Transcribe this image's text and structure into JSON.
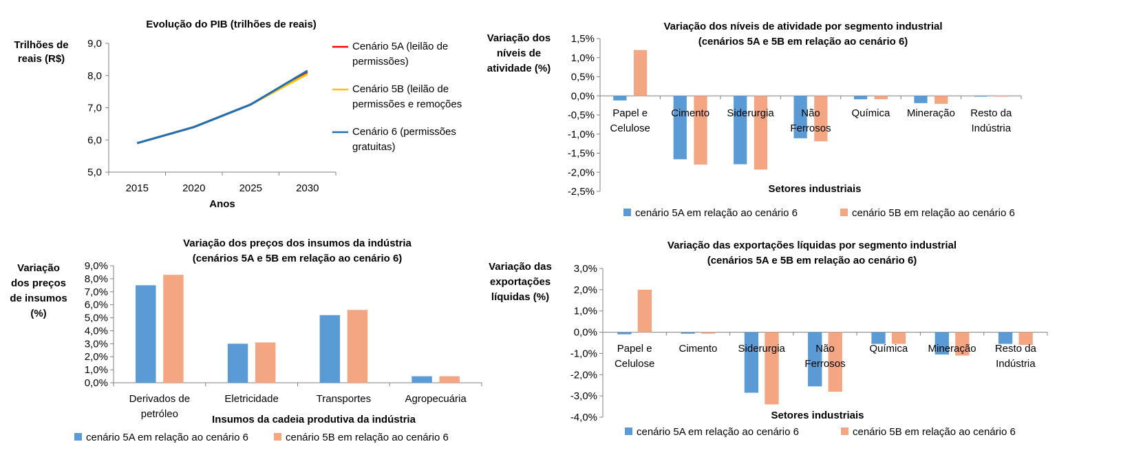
{
  "colors": {
    "series_5a_line": "#ff0000",
    "series_5b_line": "#ffc000",
    "series_6_line": "#1f6fb5",
    "series_5a_bar": "#5b9bd5",
    "series_5b_bar": "#f4a582",
    "axis": "#7f7f7f"
  },
  "chart_data": [
    {
      "id": "pib",
      "type": "line",
      "title": "Evolução do PIB (trilhões de reais)",
      "subtitle": "",
      "xlabel": "Anos",
      "ylabel": [
        "Trilhões de",
        "reais (R$)"
      ],
      "x": [
        "2015",
        "2020",
        "2025",
        "2030"
      ],
      "ylim": [
        5.0,
        9.0
      ],
      "yticks": [
        "5,0",
        "6,0",
        "7,0",
        "8,0",
        "9,0"
      ],
      "grid": false,
      "legend_position": "right",
      "series": [
        {
          "name": "Cenário 5A (leilão de permissões)",
          "legend_lines": [
            "Cenário 5A (leilão de",
            "permissões)"
          ],
          "color": "#ff0000",
          "values": [
            5.9,
            6.4,
            7.1,
            8.1
          ]
        },
        {
          "name": "Cenário 5B (leilão de permissões e remoções",
          "legend_lines": [
            "Cenário 5B (leilão de",
            "permissões e remoções"
          ],
          "color": "#ffc000",
          "values": [
            5.9,
            6.4,
            7.1,
            8.05
          ]
        },
        {
          "name": "Cenário 6 (permissões gratuitas)",
          "legend_lines": [
            "Cenário 6 (permissões",
            "gratuitas)"
          ],
          "color": "#1f6fb5",
          "values": [
            5.9,
            6.4,
            7.1,
            8.15
          ]
        }
      ]
    },
    {
      "id": "atividade",
      "type": "bar",
      "title": [
        "Variação dos níveis de atividade por segmento industrial",
        "(cenários 5A e 5B em relação ao cenário 6)"
      ],
      "xlabel": "Setores industriais",
      "ylabel": [
        "Variação dos",
        "níveis de",
        "atividade (%)"
      ],
      "categories": [
        [
          "Papel e",
          "Celulose"
        ],
        [
          "Cimento"
        ],
        [
          "Siderurgia"
        ],
        [
          "Não",
          "Ferrosos"
        ],
        [
          "Química"
        ],
        [
          "Mineração"
        ],
        [
          "Resto da",
          "Indústria"
        ]
      ],
      "ylim": [
        -2.5,
        1.5
      ],
      "yticks": [
        "-2,5%",
        "-2,0%",
        "-1,5%",
        "-1,0%",
        "-0,5%",
        "0,0%",
        "0,5%",
        "1,0%",
        "1,5%"
      ],
      "grid": false,
      "legend_position": "bottom",
      "series": [
        {
          "name": "cenário 5A em relação ao cenário 6",
          "color": "#5b9bd5",
          "values": [
            -0.12,
            -1.66,
            -1.79,
            -1.11,
            -0.09,
            -0.19,
            -0.02
          ]
        },
        {
          "name": "cenário 5B em relação ao cenário 6",
          "color": "#f4a582",
          "values": [
            1.2,
            -1.8,
            -1.93,
            -1.19,
            -0.09,
            -0.21,
            -0.02
          ]
        }
      ]
    },
    {
      "id": "precos",
      "type": "bar",
      "title": [
        "Variação dos preços dos insumos da indústria",
        "(cenários 5A e 5B em relação ao cenário 6)"
      ],
      "xlabel": "Insumos da cadeia produtiva da indústria",
      "ylabel": [
        "Variação",
        "dos preços",
        "de insumos",
        "(%)"
      ],
      "categories": [
        [
          "Derivados de",
          "petróleo"
        ],
        [
          "Eletricidade"
        ],
        [
          "Transportes"
        ],
        [
          "Agropecuária"
        ]
      ],
      "ylim": [
        0,
        9
      ],
      "yticks": [
        "0,0%",
        "1,0%",
        "2,0%",
        "3,0%",
        "4,0%",
        "5,0%",
        "6,0%",
        "7,0%",
        "8,0%",
        "9,0%"
      ],
      "grid": false,
      "legend_position": "bottom",
      "series": [
        {
          "name": "cenário 5A em relação ao cenário 6",
          "color": "#5b9bd5",
          "values": [
            7.5,
            3.0,
            5.2,
            0.5
          ]
        },
        {
          "name": "cenário 5B em relação ao cenário 6",
          "color": "#f4a582",
          "values": [
            8.3,
            3.1,
            5.6,
            0.5
          ]
        }
      ]
    },
    {
      "id": "exportacoes",
      "type": "bar",
      "title": [
        "Variação das exportações líquidas por segmento industrial",
        "(cenários 5A e 5B em relação ao cenário 6)"
      ],
      "xlabel": "Setores industriais",
      "ylabel": [
        "Variação das",
        "exportações",
        "líquidas (%)"
      ],
      "categories": [
        [
          "Papel e",
          "Celulose"
        ],
        [
          "Cimento"
        ],
        [
          "Siderurgia"
        ],
        [
          "Não",
          "Ferrosos"
        ],
        [
          "Química"
        ],
        [
          "Mineração"
        ],
        [
          "Resto da",
          "Indústria"
        ]
      ],
      "ylim": [
        -4.0,
        3.0
      ],
      "yticks": [
        "-4,0%",
        "-3,0%",
        "-2,0%",
        "-1,0%",
        "0,0%",
        "1,0%",
        "2,0%",
        "3,0%"
      ],
      "grid": false,
      "legend_position": "bottom",
      "series": [
        {
          "name": "cenário 5A em relação ao cenário 6",
          "color": "#5b9bd5",
          "values": [
            -0.1,
            -0.07,
            -2.85,
            -2.55,
            -0.55,
            -1.05,
            -0.55
          ]
        },
        {
          "name": "cenário 5B em relação ao cenário 6",
          "color": "#f4a582",
          "values": [
            2.0,
            -0.07,
            -3.4,
            -2.8,
            -0.55,
            -1.1,
            -0.6
          ]
        }
      ]
    }
  ]
}
